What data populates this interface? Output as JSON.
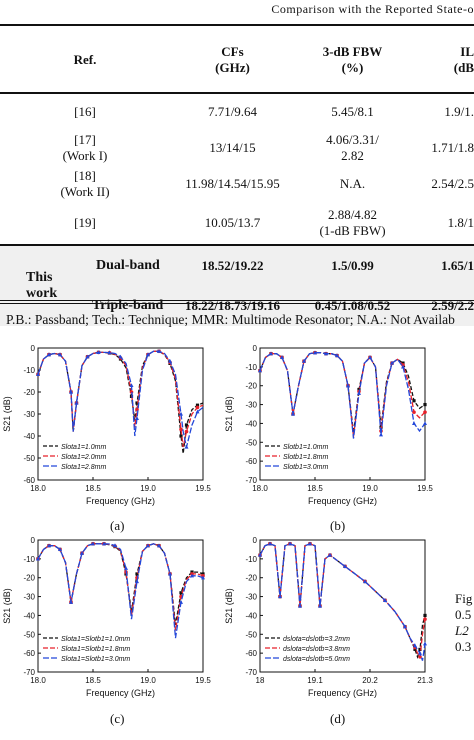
{
  "table": {
    "caption": "Comparison with the Reported State-o",
    "headers": {
      "ref": "Ref.",
      "cf_line1": "CFs",
      "cf_line2": "(GHz)",
      "fbw_line1": "3-dB FBW",
      "fbw_line2": "(%)",
      "il_line1": "IL",
      "il_line2": "(dB"
    },
    "rows": [
      {
        "ref": "[16]",
        "ref2": "",
        "cf": "7.71/9.64",
        "fbw": "5.45/8.1",
        "fbw2": "",
        "il": "1.9/1."
      },
      {
        "ref": "[17]",
        "ref2": "(Work I)",
        "cf": "13/14/15",
        "fbw": "4.06/3.31/",
        "fbw2": "2.82",
        "il": "1.71/1.8"
      },
      {
        "ref": "[18]",
        "ref2": "(Work II)",
        "cf": "11.98/14.54/15.95",
        "fbw": "N.A.",
        "fbw2": "",
        "il": "2.54/2.5"
      },
      {
        "ref": "[19]",
        "ref2": "",
        "cf": "10.05/13.7",
        "fbw": "2.88/4.82",
        "fbw2": "(1-dB FBW)",
        "il": "1.8/1"
      }
    ],
    "this_work": {
      "label_line1": "This",
      "label_line2": "work",
      "dual": {
        "type": "Dual-band",
        "cf": "18.52/19.22",
        "fbw": "1.5/0.99",
        "il": "1.65/1"
      },
      "triple": {
        "type": "Triple-band",
        "cf": "18.22/18.73/19.16",
        "fbw": "0.45/1.08/0.52",
        "il": "2.59/2.2"
      }
    },
    "footnote": "P.B.: Passband; Tech.: Technique; MMR: Multimode Resonator; N.A.: Not Availab"
  },
  "side_caption": [
    "Fig",
    "0.5",
    "L2",
    "0.3"
  ],
  "colors": {
    "s1": "#111111",
    "s2": "#e8202a",
    "s3": "#2347d9"
  },
  "chart_data": [
    {
      "type": "line",
      "panel_label": "(a)",
      "xlabel": "Frequency (GHz)",
      "ylabel": "S21 (dB)",
      "xlim": [
        18.0,
        19.5
      ],
      "ylim": [
        -60,
        0
      ],
      "xticks": [
        "18.0",
        "18.5",
        "19.0",
        "19.5"
      ],
      "yticks": [
        "0",
        "-10",
        "-20",
        "-30",
        "-40",
        "-50",
        "-60"
      ],
      "legend_position": "bottom-left",
      "series": [
        {
          "name": "Slota1=1.0mm",
          "x": [
            18.0,
            18.05,
            18.1,
            18.15,
            18.2,
            18.25,
            18.3,
            18.32,
            18.35,
            18.4,
            18.45,
            18.5,
            18.55,
            18.6,
            18.65,
            18.7,
            18.75,
            18.8,
            18.85,
            18.88,
            18.9,
            18.95,
            19.0,
            19.05,
            19.1,
            19.15,
            19.2,
            19.25,
            19.3,
            19.32,
            19.35,
            19.4,
            19.45,
            19.5
          ],
          "y": [
            -12,
            -5,
            -3,
            -2.5,
            -3,
            -6,
            -20,
            -38,
            -25,
            -8,
            -4,
            -2.5,
            -2,
            -2,
            -2.3,
            -3,
            -5,
            -9,
            -22,
            -33,
            -25,
            -8,
            -3,
            -1.5,
            -1.5,
            -3,
            -7,
            -15,
            -40,
            -48,
            -35,
            -28,
            -26,
            -25
          ]
        },
        {
          "name": "Slota1=2.0mm",
          "x": [
            18.0,
            18.05,
            18.1,
            18.15,
            18.2,
            18.25,
            18.3,
            18.32,
            18.35,
            18.4,
            18.45,
            18.5,
            18.55,
            18.6,
            18.65,
            18.7,
            18.75,
            18.8,
            18.85,
            18.88,
            18.9,
            18.95,
            19.0,
            19.05,
            19.1,
            19.15,
            19.2,
            19.25,
            19.3,
            19.32,
            19.35,
            19.4,
            19.45,
            19.5
          ],
          "y": [
            -12,
            -5,
            -3,
            -2.5,
            -3,
            -6,
            -20,
            -38,
            -25,
            -8,
            -4,
            -2.5,
            -2,
            -2,
            -2.2,
            -2.8,
            -4.5,
            -8,
            -20,
            -36,
            -28,
            -9,
            -3,
            -1.5,
            -1.5,
            -2.8,
            -6.5,
            -14,
            -37,
            -45,
            -38,
            -30,
            -27,
            -26
          ]
        },
        {
          "name": "Slota1=2.8mm",
          "x": [
            18.0,
            18.05,
            18.1,
            18.15,
            18.2,
            18.25,
            18.3,
            18.32,
            18.35,
            18.4,
            18.45,
            18.5,
            18.55,
            18.6,
            18.65,
            18.7,
            18.75,
            18.8,
            18.85,
            18.88,
            18.9,
            18.95,
            19.0,
            19.05,
            19.1,
            19.15,
            19.2,
            19.25,
            19.3,
            19.32,
            19.35,
            19.4,
            19.45,
            19.5
          ],
          "y": [
            -12,
            -5,
            -3,
            -2.5,
            -3,
            -6,
            -20,
            -38,
            -25,
            -8,
            -4,
            -2.5,
            -2,
            -2,
            -2.1,
            -2.5,
            -4,
            -7,
            -17,
            -40,
            -32,
            -10,
            -3,
            -1.5,
            -1.5,
            -2.5,
            -6,
            -12,
            -30,
            -38,
            -45,
            -35,
            -29,
            -27
          ]
        }
      ]
    },
    {
      "type": "line",
      "panel_label": "(b)",
      "xlabel": "Frequency (GHz)",
      "ylabel": "S21 (dB)",
      "xlim": [
        18.0,
        19.5
      ],
      "ylim": [
        -70,
        0
      ],
      "xticks": [
        "18.0",
        "18.5",
        "19.0",
        "19.5"
      ],
      "yticks": [
        "0",
        "-10",
        "-20",
        "-30",
        "-40",
        "-50",
        "-60",
        "-70"
      ],
      "legend_position": "bottom-left",
      "series": [
        {
          "name": "Slotb1=1.0mm",
          "x": [
            18.0,
            18.05,
            18.1,
            18.15,
            18.2,
            18.25,
            18.3,
            18.35,
            18.4,
            18.45,
            18.5,
            18.55,
            18.6,
            18.65,
            18.7,
            18.75,
            18.8,
            18.85,
            18.9,
            18.95,
            19.0,
            19.05,
            19.1,
            19.15,
            19.2,
            19.25,
            19.3,
            19.35,
            19.4,
            19.45,
            19.5
          ],
          "y": [
            -12,
            -5,
            -3,
            -3,
            -5,
            -12,
            -35,
            -20,
            -7,
            -3,
            -2.5,
            -2.5,
            -3,
            -3,
            -4,
            -7,
            -20,
            -45,
            -22,
            -8,
            -5,
            -10,
            -42,
            -18,
            -8,
            -6,
            -8,
            -15,
            -28,
            -32,
            -30
          ]
        },
        {
          "name": "Slotb1=1.8mm",
          "x": [
            18.0,
            18.05,
            18.1,
            18.15,
            18.2,
            18.25,
            18.3,
            18.35,
            18.4,
            18.45,
            18.5,
            18.55,
            18.6,
            18.65,
            18.7,
            18.75,
            18.8,
            18.85,
            18.9,
            18.95,
            19.0,
            19.05,
            19.1,
            19.15,
            19.2,
            19.25,
            19.3,
            19.35,
            19.4,
            19.45,
            19.5
          ],
          "y": [
            -12,
            -5,
            -3,
            -3,
            -5,
            -12,
            -35,
            -20,
            -7,
            -3,
            -2.5,
            -2.5,
            -3,
            -3,
            -4,
            -7,
            -20,
            -47,
            -23,
            -8,
            -5,
            -10,
            -44,
            -19,
            -8,
            -6,
            -9,
            -18,
            -34,
            -37,
            -34
          ]
        },
        {
          "name": "Slotb1=3.0mm",
          "x": [
            18.0,
            18.05,
            18.1,
            18.15,
            18.2,
            18.25,
            18.3,
            18.35,
            18.4,
            18.45,
            18.5,
            18.55,
            18.6,
            18.65,
            18.7,
            18.75,
            18.8,
            18.85,
            18.9,
            18.95,
            19.0,
            19.05,
            19.1,
            19.15,
            19.2,
            19.25,
            19.3,
            19.35,
            19.4,
            19.45,
            19.5
          ],
          "y": [
            -12,
            -5,
            -3,
            -3,
            -5,
            -12,
            -35,
            -20,
            -7,
            -3,
            -2.5,
            -2.5,
            -3,
            -3,
            -4,
            -7,
            -20,
            -48,
            -24,
            -8,
            -5,
            -10,
            -46,
            -20,
            -8,
            -6,
            -10,
            -22,
            -40,
            -44,
            -40
          ]
        }
      ]
    },
    {
      "type": "line",
      "panel_label": "(c)",
      "xlabel": "Frequency (GHz)",
      "ylabel": "S21 (dB)",
      "xlim": [
        18.0,
        19.5
      ],
      "ylim": [
        -70,
        0
      ],
      "xticks": [
        "18.0",
        "18.5",
        "19.0",
        "19.5"
      ],
      "yticks": [
        "0",
        "-10",
        "-20",
        "-30",
        "-40",
        "-50",
        "-60",
        "-70"
      ],
      "legend_position": "bottom-left",
      "series": [
        {
          "name": "Slota1=Slotb1=1.0mm",
          "x": [
            18.0,
            18.05,
            18.1,
            18.15,
            18.2,
            18.25,
            18.3,
            18.35,
            18.4,
            18.45,
            18.5,
            18.55,
            18.6,
            18.65,
            18.7,
            18.75,
            18.8,
            18.85,
            18.9,
            18.95,
            19.0,
            19.05,
            19.1,
            19.15,
            19.2,
            19.25,
            19.3,
            19.35,
            19.4,
            19.45,
            19.5
          ],
          "y": [
            -10,
            -5,
            -3,
            -3,
            -5,
            -12,
            -33,
            -18,
            -7,
            -3,
            -2,
            -2,
            -2,
            -2.5,
            -3.5,
            -6,
            -18,
            -38,
            -18,
            -6,
            -3,
            -2,
            -3,
            -7,
            -18,
            -45,
            -28,
            -20,
            -17,
            -17,
            -18
          ]
        },
        {
          "name": "Slota1=Slotb1=1.8mm",
          "x": [
            18.0,
            18.05,
            18.1,
            18.15,
            18.2,
            18.25,
            18.3,
            18.35,
            18.4,
            18.45,
            18.5,
            18.55,
            18.6,
            18.65,
            18.7,
            18.75,
            18.8,
            18.85,
            18.9,
            18.95,
            19.0,
            19.05,
            19.1,
            19.15,
            19.2,
            19.25,
            19.3,
            19.35,
            19.4,
            19.45,
            19.5
          ],
          "y": [
            -10,
            -5,
            -3,
            -3,
            -5,
            -12,
            -33,
            -18,
            -7,
            -3,
            -2,
            -2,
            -2,
            -2.3,
            -3.2,
            -5.5,
            -17,
            -40,
            -20,
            -6,
            -3,
            -2,
            -3,
            -7,
            -18,
            -48,
            -30,
            -21,
            -18,
            -18,
            -19
          ]
        },
        {
          "name": "Slota1=Slotb1=3.0mm",
          "x": [
            18.0,
            18.05,
            18.1,
            18.15,
            18.2,
            18.25,
            18.3,
            18.35,
            18.4,
            18.45,
            18.5,
            18.55,
            18.6,
            18.65,
            18.7,
            18.75,
            18.8,
            18.85,
            18.9,
            18.95,
            19.0,
            19.05,
            19.1,
            19.15,
            19.2,
            19.25,
            19.3,
            19.35,
            19.4,
            19.45,
            19.5
          ],
          "y": [
            -10,
            -5,
            -3,
            -3,
            -5,
            -12,
            -33,
            -18,
            -7,
            -3,
            -2,
            -2,
            -2,
            -2.1,
            -2.9,
            -5,
            -15,
            -42,
            -22,
            -6,
            -3,
            -2,
            -3,
            -7,
            -18,
            -52,
            -33,
            -22,
            -19,
            -19,
            -20
          ]
        }
      ]
    },
    {
      "type": "line",
      "panel_label": "(d)",
      "xlabel": "Frequency (GHz)",
      "ylabel": "S21 (dB)",
      "xlim": [
        18.0,
        21.3
      ],
      "ylim": [
        -70,
        0
      ],
      "xticks": [
        "18",
        "19.1",
        "20.2",
        "21.3"
      ],
      "yticks": [
        "0",
        "-10",
        "-20",
        "-30",
        "-40",
        "-50",
        "-60",
        "-70"
      ],
      "legend_position": "bottom-left",
      "series": [
        {
          "name": "dslota=dslotb=3.2mm",
          "x": [
            18.0,
            18.1,
            18.2,
            18.3,
            18.4,
            18.5,
            18.6,
            18.7,
            18.8,
            18.9,
            19.0,
            19.1,
            19.2,
            19.3,
            19.4,
            19.5,
            19.7,
            19.9,
            20.1,
            20.3,
            20.5,
            20.7,
            20.9,
            21.0,
            21.1,
            21.15,
            21.2,
            21.25,
            21.3
          ],
          "y": [
            -8,
            -3,
            -2,
            -3,
            -30,
            -3,
            -2,
            -3,
            -35,
            -3,
            -2,
            -3,
            -35,
            -10,
            -8,
            -10,
            -14,
            -18,
            -22,
            -27,
            -32,
            -38,
            -46,
            -52,
            -58,
            -62,
            -58,
            -45,
            -40
          ]
        },
        {
          "name": "dslota=dslotb=3.8mm",
          "x": [
            18.0,
            18.1,
            18.2,
            18.3,
            18.4,
            18.5,
            18.6,
            18.7,
            18.8,
            18.9,
            19.0,
            19.1,
            19.2,
            19.3,
            19.4,
            19.5,
            19.7,
            19.9,
            20.1,
            20.3,
            20.5,
            20.7,
            20.9,
            21.0,
            21.1,
            21.15,
            21.2,
            21.25,
            21.3
          ],
          "y": [
            -8,
            -3,
            -2,
            -3,
            -30,
            -3,
            -2,
            -3,
            -35,
            -3,
            -2,
            -3,
            -35,
            -10,
            -8,
            -10,
            -14,
            -18,
            -22,
            -27,
            -32,
            -38,
            -46,
            -52,
            -57,
            -60,
            -62,
            -50,
            -42
          ]
        },
        {
          "name": "dslota=dslotb=5.0mm",
          "x": [
            18.0,
            18.1,
            18.2,
            18.3,
            18.4,
            18.5,
            18.6,
            18.7,
            18.8,
            18.9,
            19.0,
            19.1,
            19.2,
            19.3,
            19.4,
            19.5,
            19.7,
            19.9,
            20.1,
            20.3,
            20.5,
            20.7,
            20.9,
            21.0,
            21.1,
            21.15,
            21.2,
            21.25,
            21.3
          ],
          "y": [
            -8,
            -3,
            -2,
            -3,
            -30,
            -3,
            -2,
            -3,
            -35,
            -3,
            -2,
            -3,
            -35,
            -10,
            -8,
            -10,
            -14,
            -18,
            -22,
            -27,
            -32,
            -38,
            -46,
            -52,
            -56,
            -58,
            -60,
            -64,
            -55
          ]
        }
      ]
    }
  ]
}
